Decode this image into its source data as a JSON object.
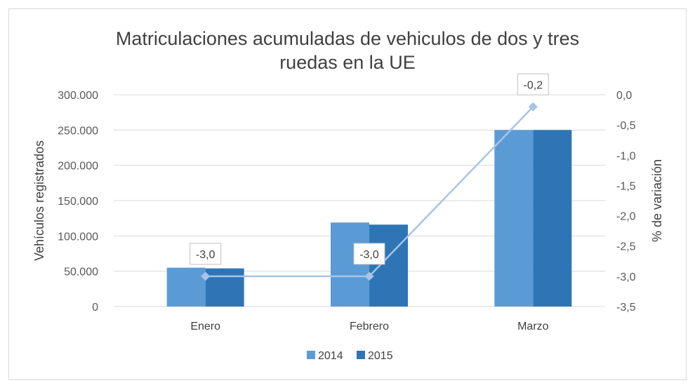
{
  "chart_data": {
    "type": "bar",
    "title_lines": [
      "Matriculaciones acumuladas de vehiculos de dos y tres",
      "ruedas en la UE"
    ],
    "categories": [
      "Enero",
      "Febrero",
      "Marzo"
    ],
    "series": [
      {
        "name": "2014",
        "values": [
          55000,
          119000,
          250000
        ],
        "color": "#5b9bd5"
      },
      {
        "name": "2015",
        "values": [
          54000,
          116000,
          250000
        ],
        "color": "#2e75b6"
      }
    ],
    "line_series": {
      "name": "% de variación",
      "values": [
        -3.0,
        -3.0,
        -0.2
      ],
      "labels": [
        "-3,0",
        "-3,0",
        "-0,2"
      ],
      "color": "#a9c4e4"
    },
    "ylabel": "Vehículos registrados",
    "y2label": "% de variación",
    "ylim": [
      0,
      300000
    ],
    "y2lim": [
      -3.5,
      0
    ],
    "y_ticks": [
      0,
      50000,
      100000,
      150000,
      200000,
      250000,
      300000
    ],
    "y_tick_labels": [
      "0",
      "50.000",
      "100.000",
      "150.000",
      "200.000",
      "250.000",
      "300.000"
    ],
    "y2_ticks": [
      -3.5,
      -3.0,
      -2.5,
      -2.0,
      -1.5,
      -1.0,
      -0.5,
      0.0
    ],
    "y2_tick_labels": [
      "-3,5",
      "-3,0",
      "-2,5",
      "-2,0",
      "-1,5",
      "-1,0",
      "-0,5",
      "0,0"
    ],
    "legend": [
      "2014",
      "2015"
    ],
    "grid": true,
    "colors": {
      "gridline": "#d9d9d9",
      "label_border": "#bfbfbf"
    }
  }
}
